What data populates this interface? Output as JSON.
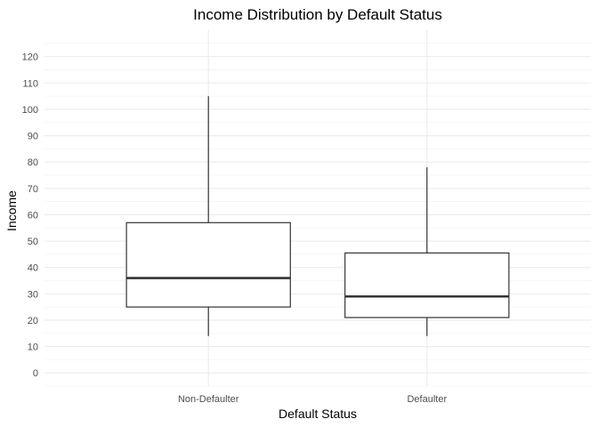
{
  "chart_data": {
    "type": "boxplot",
    "title": "Income Distribution by Default Status",
    "xlabel": "Default Status",
    "ylabel": "Income",
    "categories": [
      "Non-Defaulter",
      "Defaulter"
    ],
    "boxes": [
      {
        "category": "Non-Defaulter",
        "min": 14,
        "q1": 25,
        "median": 36,
        "q3": 57,
        "max": 105
      },
      {
        "category": "Defaulter",
        "min": 14,
        "q1": 21,
        "median": 29,
        "q3": 45.5,
        "max": 78
      }
    ],
    "ylim": [
      -5,
      130
    ],
    "yticks": [
      0,
      10,
      20,
      30,
      40,
      50,
      60,
      70,
      80,
      90,
      100,
      110,
      120
    ],
    "grid": true,
    "legend": "none"
  }
}
